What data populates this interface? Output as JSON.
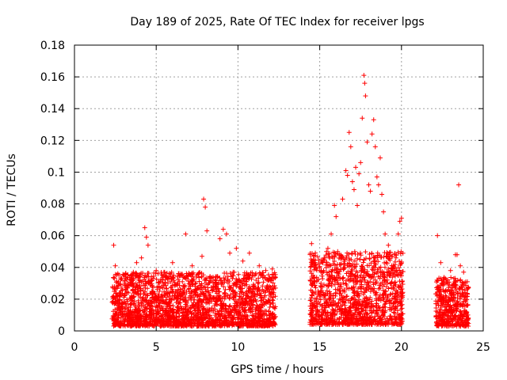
{
  "chart_data": {
    "type": "scatter",
    "title": "Day 189 of 2025, Rate Of TEC Index for receiver lpgs",
    "xlabel": "GPS time / hours",
    "ylabel": "ROTI / TECUs",
    "xlim": [
      0,
      25
    ],
    "ylim": [
      0,
      0.18
    ],
    "xticks": [
      0,
      5,
      10,
      15,
      20,
      25
    ],
    "xtick_labels": [
      "0",
      "5",
      "10",
      "15",
      "20",
      "25"
    ],
    "yticks": [
      0,
      0.02,
      0.04,
      0.06,
      0.08,
      0.1,
      0.12,
      0.14,
      0.16,
      0.18
    ],
    "ytick_labels": [
      "0",
      "0.02",
      "0.04",
      "0.06",
      "0.08",
      "0.1",
      "0.12",
      "0.14",
      "0.16",
      "0.18"
    ],
    "grid": true,
    "marker": "plus",
    "series_color": "#ff0000",
    "series": [
      {
        "name": "ROTI",
        "points": [
          [
            2.4,
            0.054
          ],
          [
            2.5,
            0.041
          ],
          [
            2.6,
            0.022
          ],
          [
            2.7,
            0.031
          ],
          [
            2.8,
            0.012
          ],
          [
            2.9,
            0.027
          ],
          [
            3.0,
            0.018
          ],
          [
            3.1,
            0.029
          ],
          [
            3.2,
            0.015
          ],
          [
            3.3,
            0.024
          ],
          [
            3.4,
            0.009
          ],
          [
            3.5,
            0.033
          ],
          [
            3.6,
            0.037
          ],
          [
            3.7,
            0.026
          ],
          [
            3.8,
            0.043
          ],
          [
            3.9,
            0.019
          ],
          [
            4.0,
            0.028
          ],
          [
            4.1,
            0.046
          ],
          [
            4.2,
            0.021
          ],
          [
            4.3,
            0.065
          ],
          [
            4.4,
            0.059
          ],
          [
            4.5,
            0.054
          ],
          [
            4.6,
            0.032
          ],
          [
            4.8,
            0.025
          ],
          [
            5.0,
            0.038
          ],
          [
            5.2,
            0.016
          ],
          [
            5.4,
            0.027
          ],
          [
            5.6,
            0.034
          ],
          [
            5.8,
            0.022
          ],
          [
            6.0,
            0.043
          ],
          [
            6.2,
            0.029
          ],
          [
            6.4,
            0.018
          ],
          [
            6.6,
            0.031
          ],
          [
            6.8,
            0.061
          ],
          [
            7.0,
            0.026
          ],
          [
            7.2,
            0.041
          ],
          [
            7.4,
            0.024
          ],
          [
            7.6,
            0.019
          ],
          [
            7.8,
            0.047
          ],
          [
            7.9,
            0.083
          ],
          [
            8.0,
            0.078
          ],
          [
            8.1,
            0.063
          ],
          [
            8.3,
            0.034
          ],
          [
            8.5,
            0.021
          ],
          [
            8.7,
            0.029
          ],
          [
            8.9,
            0.058
          ],
          [
            9.1,
            0.064
          ],
          [
            9.3,
            0.061
          ],
          [
            9.5,
            0.049
          ],
          [
            9.7,
            0.037
          ],
          [
            9.9,
            0.052
          ],
          [
            10.1,
            0.028
          ],
          [
            10.3,
            0.044
          ],
          [
            10.5,
            0.031
          ],
          [
            10.7,
            0.049
          ],
          [
            10.9,
            0.022
          ],
          [
            11.1,
            0.036
          ],
          [
            11.3,
            0.041
          ],
          [
            11.5,
            0.026
          ],
          [
            11.7,
            0.038
          ],
          [
            11.9,
            0.019
          ],
          [
            12.1,
            0.039
          ],
          [
            14.5,
            0.055
          ],
          [
            14.6,
            0.043
          ],
          [
            14.7,
            0.031
          ],
          [
            14.9,
            0.025
          ],
          [
            15.1,
            0.038
          ],
          [
            15.3,
            0.046
          ],
          [
            15.5,
            0.052
          ],
          [
            15.7,
            0.061
          ],
          [
            15.9,
            0.079
          ],
          [
            16.0,
            0.072
          ],
          [
            16.2,
            0.048
          ],
          [
            16.4,
            0.083
          ],
          [
            16.6,
            0.101
          ],
          [
            16.7,
            0.098
          ],
          [
            16.8,
            0.125
          ],
          [
            16.9,
            0.116
          ],
          [
            17.0,
            0.094
          ],
          [
            17.1,
            0.089
          ],
          [
            17.2,
            0.103
          ],
          [
            17.3,
            0.079
          ],
          [
            17.4,
            0.099
          ],
          [
            17.5,
            0.106
          ],
          [
            17.6,
            0.134
          ],
          [
            17.7,
            0.161
          ],
          [
            17.75,
            0.156
          ],
          [
            17.8,
            0.148
          ],
          [
            17.9,
            0.119
          ],
          [
            18.0,
            0.092
          ],
          [
            18.1,
            0.088
          ],
          [
            18.2,
            0.124
          ],
          [
            18.3,
            0.133
          ],
          [
            18.4,
            0.116
          ],
          [
            18.5,
            0.097
          ],
          [
            18.6,
            0.092
          ],
          [
            18.7,
            0.109
          ],
          [
            18.8,
            0.086
          ],
          [
            18.9,
            0.075
          ],
          [
            19.0,
            0.061
          ],
          [
            19.2,
            0.054
          ],
          [
            19.4,
            0.047
          ],
          [
            19.6,
            0.038
          ],
          [
            19.8,
            0.061
          ],
          [
            19.9,
            0.069
          ],
          [
            20.0,
            0.071
          ],
          [
            22.2,
            0.06
          ],
          [
            22.4,
            0.043
          ],
          [
            22.6,
            0.031
          ],
          [
            22.8,
            0.025
          ],
          [
            23.0,
            0.038
          ],
          [
            23.2,
            0.033
          ],
          [
            23.3,
            0.048
          ],
          [
            23.4,
            0.048
          ],
          [
            23.5,
            0.092
          ],
          [
            23.6,
            0.041
          ],
          [
            23.7,
            0.029
          ],
          [
            23.8,
            0.037
          ],
          [
            23.9,
            0.022
          ],
          [
            24.0,
            0.016
          ]
        ]
      }
    ],
    "dense_band": {
      "segments": [
        {
          "x_start": 2.3,
          "x_end": 12.3,
          "y_min": 0.003,
          "y_max": 0.037
        },
        {
          "x_start": 14.4,
          "x_end": 20.1,
          "y_min": 0.004,
          "y_max": 0.05
        },
        {
          "x_start": 22.1,
          "x_end": 24.1,
          "y_min": 0.003,
          "y_max": 0.034
        }
      ]
    }
  }
}
